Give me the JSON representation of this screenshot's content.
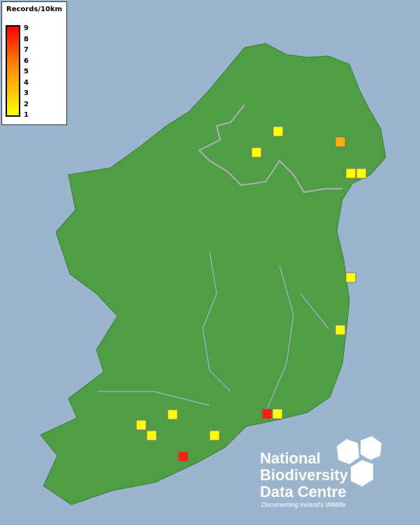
{
  "legend": {
    "title": "Records/10km",
    "ticks": [
      "9",
      "8",
      "7",
      "6",
      "5",
      "4",
      "3",
      "2",
      "1"
    ],
    "min": 1,
    "max": 9,
    "colors": {
      "low": "#ffff00",
      "mid": "#ff8c00",
      "high": "#ff0000"
    }
  },
  "records": [
    {
      "value": 1,
      "color": "#ffff00"
    },
    {
      "value": 1,
      "color": "#ffff00"
    },
    {
      "value": 3,
      "color": "#ffb000"
    },
    {
      "value": 1,
      "color": "#ffff00"
    },
    {
      "value": 1,
      "color": "#ffff00"
    },
    {
      "value": 1,
      "color": "#ffff00"
    },
    {
      "value": 1,
      "color": "#ffff00"
    },
    {
      "value": 1,
      "color": "#ffff00"
    },
    {
      "value": 1,
      "color": "#ffff00"
    },
    {
      "value": 1,
      "color": "#ffff00"
    },
    {
      "value": 1,
      "color": "#ffff00"
    },
    {
      "value": 8,
      "color": "#ff2000"
    },
    {
      "value": 1,
      "color": "#ffff00"
    },
    {
      "value": 8,
      "color": "#ff2000"
    }
  ],
  "colors": {
    "sea": "#9bb5cf",
    "land": "#4f9e45",
    "rivers": "#9ab8d8",
    "border": "#b0b0b0"
  },
  "logo": {
    "line1": "National",
    "line2": "Biodiversity",
    "line3": "Data Centre",
    "tagline": "Documenting Ireland's Wildlife"
  }
}
